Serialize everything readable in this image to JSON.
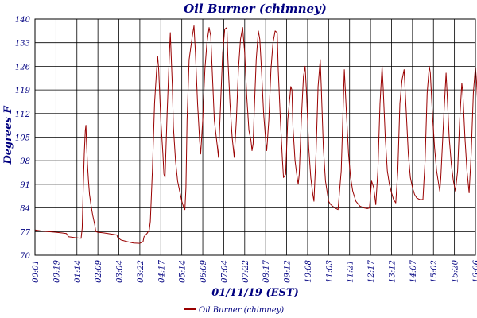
{
  "chart_data": {
    "type": "line",
    "title": "Oil Burner (chimney)",
    "xlabel": "01/11/19 (EST)",
    "ylabel": "Degrees F",
    "ylim": [
      70,
      140
    ],
    "yticks": [
      70,
      77,
      84,
      91,
      98,
      105,
      112,
      119,
      126,
      133,
      140
    ],
    "xticks": [
      "00:01",
      "00:19",
      "01:14",
      "02:09",
      "03:04",
      "03:22",
      "04:17",
      "05:14",
      "06:09",
      "07:04",
      "07:22",
      "08:17",
      "09:12",
      "10:08",
      "11:03",
      "11:21",
      "12:17",
      "13:12",
      "14:07",
      "15:02",
      "15:20",
      "16:06"
    ],
    "grid": true,
    "legend_position": "bottom",
    "series": [
      {
        "name": "Oil Burner (chimney)",
        "color": "#990000",
        "points": [
          [
            0.0,
            77.5
          ],
          [
            0.3,
            77.2
          ],
          [
            0.6,
            77.0
          ],
          [
            1.0,
            76.8
          ],
          [
            1.3,
            76.6
          ],
          [
            1.5,
            76.4
          ],
          [
            1.6,
            75.5
          ],
          [
            1.9,
            75.2
          ],
          [
            2.2,
            75.0
          ],
          [
            2.25,
            78.0
          ],
          [
            2.3,
            90.0
          ],
          [
            2.35,
            100.0
          ],
          [
            2.4,
            107.0
          ],
          [
            2.43,
            108.5
          ],
          [
            2.46,
            103.0
          ],
          [
            2.5,
            97.0
          ],
          [
            2.55,
            92.0
          ],
          [
            2.6,
            88.0
          ],
          [
            2.68,
            84.5
          ],
          [
            2.75,
            82.0
          ],
          [
            2.85,
            79.0
          ],
          [
            2.9,
            77.0
          ],
          [
            3.0,
            76.8
          ],
          [
            3.3,
            76.6
          ],
          [
            3.6,
            76.3
          ],
          [
            3.9,
            76.0
          ],
          [
            3.95,
            75.2
          ],
          [
            4.1,
            74.5
          ],
          [
            4.4,
            74.0
          ],
          [
            4.7,
            73.6
          ],
          [
            5.0,
            73.5
          ],
          [
            5.15,
            74.0
          ],
          [
            5.2,
            75.5
          ],
          [
            5.35,
            76.5
          ],
          [
            5.45,
            77.5
          ],
          [
            5.5,
            80.0
          ],
          [
            5.6,
            95.0
          ],
          [
            5.7,
            115.0
          ],
          [
            5.8,
            125.0
          ],
          [
            5.85,
            129.0
          ],
          [
            5.9,
            125.0
          ],
          [
            6.0,
            110.0
          ],
          [
            6.1,
            100.0
          ],
          [
            6.15,
            94.0
          ],
          [
            6.2,
            93.0
          ],
          [
            6.3,
            112.0
          ],
          [
            6.4,
            128.0
          ],
          [
            6.45,
            136.0
          ],
          [
            6.55,
            120.0
          ],
          [
            6.6,
            108.0
          ],
          [
            6.7,
            98.0
          ],
          [
            6.8,
            92.0
          ],
          [
            6.9,
            89.0
          ],
          [
            7.0,
            86.0
          ],
          [
            7.1,
            84.0
          ],
          [
            7.15,
            83.5
          ],
          [
            7.2,
            90.0
          ],
          [
            7.25,
            110.0
          ],
          [
            7.35,
            128.0
          ],
          [
            7.5,
            135.0
          ],
          [
            7.58,
            138.0
          ],
          [
            7.65,
            130.0
          ],
          [
            7.75,
            115.0
          ],
          [
            7.85,
            104.0
          ],
          [
            7.9,
            100.0
          ],
          [
            8.0,
            110.0
          ],
          [
            8.1,
            125.0
          ],
          [
            8.2,
            133.0
          ],
          [
            8.3,
            137.5
          ],
          [
            8.38,
            135.0
          ],
          [
            8.45,
            125.0
          ],
          [
            8.55,
            110.0
          ],
          [
            8.7,
            102.0
          ],
          [
            8.75,
            99.0
          ],
          [
            8.85,
            115.0
          ],
          [
            8.95,
            130.0
          ],
          [
            9.05,
            137.0
          ],
          [
            9.15,
            137.5
          ],
          [
            9.2,
            128.0
          ],
          [
            9.3,
            115.0
          ],
          [
            9.4,
            105.0
          ],
          [
            9.5,
            99.0
          ],
          [
            9.6,
            110.0
          ],
          [
            9.7,
            125.0
          ],
          [
            9.8,
            134.0
          ],
          [
            9.9,
            137.5
          ],
          [
            10.0,
            130.0
          ],
          [
            10.1,
            117.0
          ],
          [
            10.2,
            107.0
          ],
          [
            10.3,
            104.0
          ],
          [
            10.35,
            101.0
          ],
          [
            10.4,
            103.0
          ],
          [
            10.45,
            112.0
          ],
          [
            10.55,
            128.0
          ],
          [
            10.65,
            136.5
          ],
          [
            10.72,
            134.0
          ],
          [
            10.8,
            125.0
          ],
          [
            10.9,
            112.0
          ],
          [
            11.0,
            104.0
          ],
          [
            11.05,
            101.0
          ],
          [
            11.15,
            110.0
          ],
          [
            11.25,
            125.0
          ],
          [
            11.35,
            133.0
          ],
          [
            11.45,
            136.5
          ],
          [
            11.55,
            136.0
          ],
          [
            11.6,
            125.0
          ],
          [
            11.7,
            110.0
          ],
          [
            11.8,
            98.0
          ],
          [
            11.85,
            93.0
          ],
          [
            11.95,
            94.0
          ],
          [
            12.05,
            110.0
          ],
          [
            12.2,
            120.0
          ],
          [
            12.25,
            119.0
          ],
          [
            12.3,
            108.0
          ],
          [
            12.4,
            98.0
          ],
          [
            12.5,
            93.0
          ],
          [
            12.55,
            91.0
          ],
          [
            12.6,
            94.0
          ],
          [
            12.7,
            110.0
          ],
          [
            12.8,
            123.0
          ],
          [
            12.88,
            126.0
          ],
          [
            12.95,
            118.0
          ],
          [
            13.05,
            102.0
          ],
          [
            13.15,
            93.0
          ],
          [
            13.25,
            88.0
          ],
          [
            13.3,
            86.0
          ],
          [
            13.4,
            100.0
          ],
          [
            13.5,
            120.0
          ],
          [
            13.6,
            128.0
          ],
          [
            13.65,
            120.0
          ],
          [
            13.75,
            102.0
          ],
          [
            13.85,
            92.0
          ],
          [
            13.95,
            88.0
          ],
          [
            14.0,
            86.0
          ],
          [
            14.1,
            85.0
          ],
          [
            14.3,
            84.0
          ],
          [
            14.45,
            83.5
          ],
          [
            14.6,
            95.0
          ],
          [
            14.7,
            115.0
          ],
          [
            14.75,
            125.0
          ],
          [
            14.85,
            112.0
          ],
          [
            14.95,
            100.0
          ],
          [
            15.05,
            93.0
          ],
          [
            15.15,
            89.0
          ],
          [
            15.3,
            86.0
          ],
          [
            15.5,
            84.5
          ],
          [
            15.7,
            84.0
          ],
          [
            15.85,
            83.8
          ],
          [
            15.95,
            84.0
          ],
          [
            16.05,
            92.0
          ],
          [
            16.15,
            90.0
          ],
          [
            16.25,
            85.0
          ],
          [
            16.35,
            95.0
          ],
          [
            16.45,
            115.0
          ],
          [
            16.55,
            126.0
          ],
          [
            16.6,
            120.0
          ],
          [
            16.7,
            105.0
          ],
          [
            16.8,
            95.0
          ],
          [
            16.9,
            91.0
          ],
          [
            17.0,
            88.5
          ],
          [
            17.1,
            86.5
          ],
          [
            17.2,
            85.5
          ],
          [
            17.3,
            95.0
          ],
          [
            17.4,
            115.0
          ],
          [
            17.5,
            122.0
          ],
          [
            17.6,
            125.0
          ],
          [
            17.7,
            113.0
          ],
          [
            17.8,
            100.0
          ],
          [
            17.9,
            93.0
          ],
          [
            18.0,
            90.0
          ],
          [
            18.1,
            88.0
          ],
          [
            18.2,
            87.0
          ],
          [
            18.35,
            86.5
          ],
          [
            18.5,
            86.5
          ],
          [
            18.6,
            98.0
          ],
          [
            18.7,
            118.0
          ],
          [
            18.8,
            126.0
          ],
          [
            18.85,
            124.0
          ],
          [
            18.95,
            112.0
          ],
          [
            19.05,
            102.0
          ],
          [
            19.15,
            95.0
          ],
          [
            19.2,
            93.0
          ],
          [
            19.3,
            89.0
          ],
          [
            19.35,
            93.0
          ],
          [
            19.5,
            112.0
          ],
          [
            19.6,
            124.0
          ],
          [
            19.65,
            118.0
          ],
          [
            19.75,
            105.0
          ],
          [
            19.85,
            97.0
          ],
          [
            19.95,
            92.0
          ],
          [
            20.05,
            89.0
          ],
          [
            20.15,
            95.0
          ],
          [
            20.25,
            110.0
          ],
          [
            20.35,
            121.0
          ],
          [
            20.4,
            118.0
          ],
          [
            20.5,
            105.0
          ],
          [
            20.6,
            95.0
          ],
          [
            20.7,
            88.5
          ],
          [
            20.8,
            100.0
          ],
          [
            20.9,
            118.0
          ],
          [
            21.0,
            126.0
          ],
          [
            21.05,
            122.0
          ],
          [
            21.15,
            110.0
          ],
          [
            21.25,
            100.0
          ],
          [
            21.35,
            93.0
          ],
          [
            21.45,
            90.0
          ],
          [
            21.55,
            88.0
          ],
          [
            21.6,
            95.0
          ],
          [
            21.7,
            112.0
          ],
          [
            21.8,
            124.0
          ],
          [
            21.85,
            120.0
          ],
          [
            21.95,
            106.0
          ],
          [
            22.05,
            96.0
          ],
          [
            22.15,
            90.0
          ],
          [
            22.25,
            87.0
          ],
          [
            22.35,
            86.0
          ]
        ]
      }
    ]
  }
}
